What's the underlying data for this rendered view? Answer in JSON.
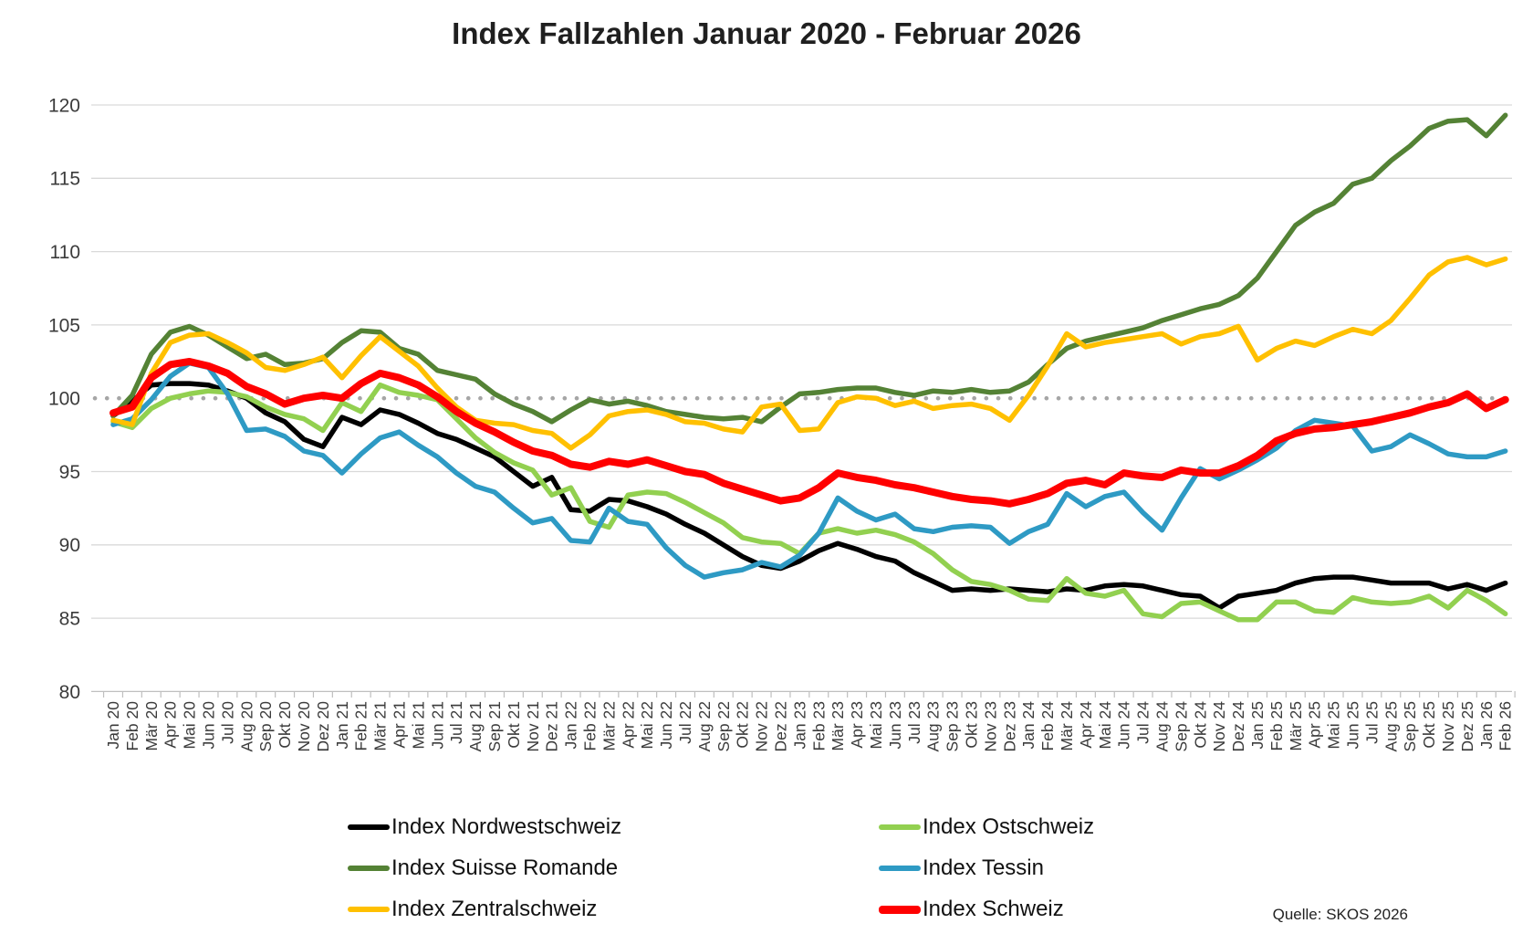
{
  "title": "Index Fallzahlen Januar 2020 - Februar 2026",
  "source": "Quelle: SKOS 2026",
  "colors": {
    "nordwestschweiz": "#000000",
    "ostschweiz": "#92d050",
    "suisse_romande": "#548235",
    "tessin": "#2e9ac4",
    "zentralschweiz": "#ffc000",
    "schweiz": "#ff0000",
    "gridline": "#d9d9d9",
    "axis_line": "#bfbfbf",
    "reference_dots": "#a6a6a6",
    "axis_text": "#3b3b3b"
  },
  "chart_data": {
    "type": "line",
    "title": "Index Fallzahlen Januar 2020 - Februar 2026",
    "xlabel": "",
    "ylabel": "",
    "ylim": [
      80,
      120
    ],
    "y_ticks": [
      80,
      85,
      90,
      95,
      100,
      105,
      110,
      115,
      120
    ],
    "grid": "horizontal",
    "reference_line": 100,
    "legend_position": "bottom",
    "categories": [
      "Jan 20",
      "Feb 20",
      "Mär 20",
      "Apr 20",
      "Mai 20",
      "Jun 20",
      "Jul 20",
      "Aug 20",
      "Sep 20",
      "Okt 20",
      "Nov 20",
      "Dez 20",
      "Jan 21",
      "Feb 21",
      "Mär 21",
      "Apr 21",
      "Mai 21",
      "Jun 21",
      "Jul 21",
      "Aug 21",
      "Sep 21",
      "Okt 21",
      "Nov 21",
      "Dez 21",
      "Jan 22",
      "Feb 22",
      "Mär 22",
      "Apr 22",
      "Mai 22",
      "Jun 22",
      "Jul 22",
      "Aug 22",
      "Sep 22",
      "Okt 22",
      "Nov 22",
      "Dez 22",
      "Jan 23",
      "Feb 23",
      "Mär 23",
      "Apr 23",
      "Mai 23",
      "Jun 23",
      "Jul 23",
      "Aug 23",
      "Sep 23",
      "Okt 23",
      "Nov 23",
      "Dez 23",
      "Jan 24",
      "Feb 24",
      "Mär 24",
      "Apr 24",
      "Mai 24",
      "Jun 24",
      "Jul 24",
      "Aug 24",
      "Sep 24",
      "Okt 24",
      "Nov 24",
      "Dez 24",
      "Jan 25",
      "Feb 25",
      "Mär 25",
      "Apr 25",
      "Mai 25",
      "Jun 25",
      "Jul 25",
      "Aug 25",
      "Sep 25",
      "Okt 25",
      "Nov 25",
      "Dez 25",
      "Jan 26",
      "Feb 26"
    ],
    "series": [
      {
        "name": "Index Nordwestschweiz",
        "color": "#000000",
        "width": 5.5,
        "values": [
          98.8,
          99.8,
          100.9,
          101.0,
          101.0,
          100.9,
          100.5,
          100.0,
          99.0,
          98.4,
          97.2,
          96.7,
          98.7,
          98.2,
          99.2,
          98.9,
          98.3,
          97.6,
          97.2,
          96.6,
          96.0,
          95.0,
          94.0,
          94.6,
          92.4,
          92.3,
          93.1,
          93.0,
          92.6,
          92.1,
          91.4,
          90.8,
          90.0,
          89.2,
          88.6,
          88.4,
          88.9,
          89.6,
          90.1,
          89.7,
          89.2,
          88.9,
          88.1,
          87.5,
          86.9,
          87.0,
          86.9,
          87.0,
          86.9,
          86.8,
          87.0,
          86.9,
          87.2,
          87.3,
          87.2,
          86.9,
          86.6,
          86.5,
          85.7,
          86.5,
          86.7,
          86.9,
          87.4,
          87.7,
          87.8,
          87.8,
          87.6,
          87.4,
          87.4,
          87.4,
          87.0,
          87.3,
          86.9,
          87.4
        ]
      },
      {
        "name": "Index Ostschweiz",
        "color": "#92d050",
        "width": 5.5,
        "values": [
          98.4,
          98.0,
          99.3,
          100.0,
          100.3,
          100.5,
          100.4,
          100.1,
          99.4,
          98.9,
          98.6,
          97.8,
          99.7,
          99.1,
          100.9,
          100.4,
          100.2,
          99.9,
          98.6,
          97.3,
          96.3,
          95.6,
          95.1,
          93.4,
          93.9,
          91.6,
          91.2,
          93.4,
          93.6,
          93.5,
          92.9,
          92.2,
          91.5,
          90.5,
          90.2,
          90.1,
          89.4,
          90.8,
          91.1,
          90.8,
          91.0,
          90.7,
          90.2,
          89.4,
          88.3,
          87.5,
          87.3,
          86.9,
          86.3,
          86.2,
          87.7,
          86.7,
          86.5,
          86.9,
          85.3,
          85.1,
          86.0,
          86.1,
          85.5,
          84.9,
          84.9,
          86.1,
          86.1,
          85.5,
          85.4,
          86.4,
          86.1,
          86.0,
          86.1,
          86.5,
          85.7,
          86.9,
          86.2,
          85.3
        ]
      },
      {
        "name": "Index Suisse Romande",
        "color": "#548235",
        "width": 5.5,
        "values": [
          98.8,
          100.2,
          103.0,
          104.5,
          104.9,
          104.3,
          103.5,
          102.7,
          103.0,
          102.3,
          102.4,
          102.7,
          103.8,
          104.6,
          104.5,
          103.4,
          103.0,
          101.9,
          101.6,
          101.3,
          100.3,
          99.6,
          99.1,
          98.4,
          99.2,
          99.9,
          99.6,
          99.8,
          99.5,
          99.1,
          98.9,
          98.7,
          98.6,
          98.7,
          98.4,
          99.4,
          100.3,
          100.4,
          100.6,
          100.7,
          100.7,
          100.4,
          100.2,
          100.5,
          100.4,
          100.6,
          100.4,
          100.5,
          101.1,
          102.3,
          103.4,
          103.9,
          104.2,
          104.5,
          104.8,
          105.3,
          105.7,
          106.1,
          106.4,
          107.0,
          108.2,
          110.0,
          111.8,
          112.7,
          113.3,
          114.6,
          115.0,
          116.2,
          117.2,
          118.4,
          118.9,
          119.0,
          117.9,
          119.3
        ]
      },
      {
        "name": "Index Tessin",
        "color": "#2e9ac4",
        "width": 5.5,
        "values": [
          98.2,
          98.6,
          99.9,
          101.5,
          102.4,
          102.1,
          100.3,
          97.8,
          97.9,
          97.4,
          96.4,
          96.1,
          94.9,
          96.2,
          97.3,
          97.7,
          96.8,
          96.0,
          94.9,
          94.0,
          93.6,
          92.5,
          91.5,
          91.8,
          90.3,
          90.2,
          92.5,
          91.6,
          91.4,
          89.8,
          88.6,
          87.8,
          88.1,
          88.3,
          88.8,
          88.5,
          89.3,
          90.8,
          93.2,
          92.3,
          91.7,
          92.1,
          91.1,
          90.9,
          91.2,
          91.3,
          91.2,
          90.1,
          90.9,
          91.4,
          93.5,
          92.6,
          93.3,
          93.6,
          92.2,
          91.0,
          93.2,
          95.2,
          94.5,
          95.1,
          95.8,
          96.6,
          97.8,
          98.5,
          98.3,
          98.1,
          96.4,
          96.7,
          97.5,
          96.9,
          96.2,
          96.0,
          96.0,
          96.4
        ]
      },
      {
        "name": "Index Zentralschweiz",
        "color": "#ffc000",
        "width": 5.5,
        "values": [
          98.5,
          98.2,
          101.7,
          103.8,
          104.3,
          104.4,
          103.8,
          103.1,
          102.1,
          101.9,
          102.3,
          102.8,
          101.4,
          102.9,
          104.2,
          103.2,
          102.2,
          100.7,
          99.4,
          98.5,
          98.3,
          98.2,
          97.8,
          97.6,
          96.6,
          97.5,
          98.8,
          99.1,
          99.2,
          98.9,
          98.4,
          98.3,
          97.9,
          97.7,
          99.4,
          99.6,
          97.8,
          97.9,
          99.7,
          100.1,
          100.0,
          99.5,
          99.8,
          99.3,
          99.5,
          99.6,
          99.3,
          98.5,
          100.2,
          102.2,
          104.4,
          103.5,
          103.8,
          104.0,
          104.2,
          104.4,
          103.7,
          104.2,
          104.4,
          104.9,
          102.6,
          103.4,
          103.9,
          103.6,
          104.2,
          104.7,
          104.4,
          105.3,
          106.8,
          108.4,
          109.3,
          109.6,
          109.1,
          109.5
        ]
      },
      {
        "name": "Index Schweiz",
        "color": "#ff0000",
        "width": 8,
        "values": [
          99.0,
          99.4,
          101.4,
          102.3,
          102.5,
          102.2,
          101.7,
          100.8,
          100.3,
          99.6,
          100.0,
          100.2,
          100.0,
          101.0,
          101.7,
          101.4,
          100.9,
          100.1,
          99.1,
          98.3,
          97.7,
          97.0,
          96.4,
          96.1,
          95.5,
          95.3,
          95.7,
          95.5,
          95.8,
          95.4,
          95.0,
          94.8,
          94.2,
          93.8,
          93.4,
          93.0,
          93.2,
          93.9,
          94.9,
          94.6,
          94.4,
          94.1,
          93.9,
          93.6,
          93.3,
          93.1,
          93.0,
          92.8,
          93.1,
          93.5,
          94.2,
          94.4,
          94.1,
          94.9,
          94.7,
          94.6,
          95.1,
          94.9,
          94.9,
          95.4,
          96.1,
          97.1,
          97.6,
          97.9,
          98.0,
          98.2,
          98.4,
          98.7,
          99.0,
          99.4,
          99.7,
          100.3,
          99.3,
          99.9
        ]
      }
    ]
  }
}
